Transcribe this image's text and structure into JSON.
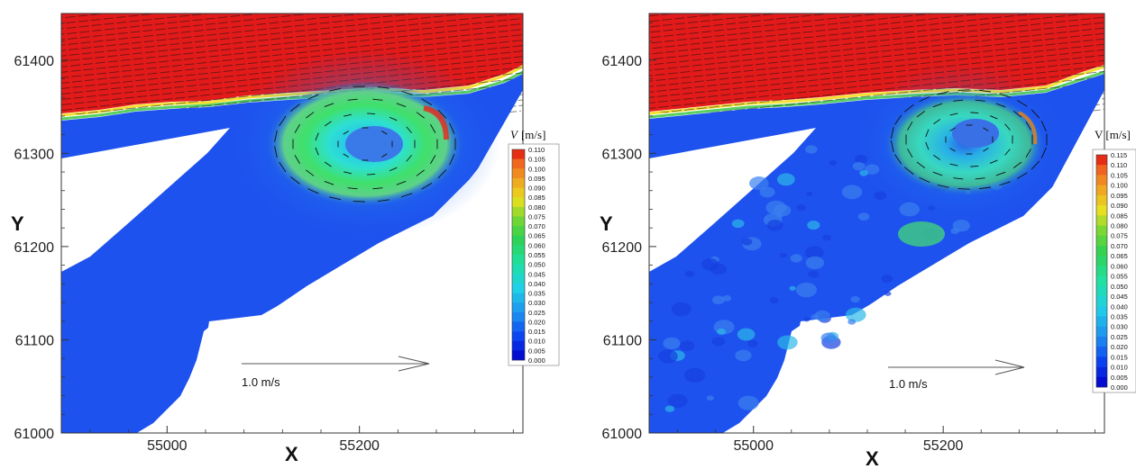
{
  "chart_data": [
    {
      "type": "contour-vector",
      "xlabel": "X",
      "ylabel": "Y",
      "xlim": [
        54890,
        55370
      ],
      "ylim": [
        61000,
        61450
      ],
      "x_ticks": [
        "55000",
        "55200"
      ],
      "y_ticks": [
        "61000",
        "61100",
        "61200",
        "61300",
        "61400"
      ],
      "x_tick_values": [
        55000,
        55200
      ],
      "y_tick_values": [
        61000,
        61100,
        61200,
        61300,
        61400
      ],
      "colorbar_title": "V [m/s]",
      "colorbar_title_italic_var": "V",
      "colorbar_unit": "[m/s]",
      "colorbar_levels": [
        "0.110",
        "0.105",
        "0.100",
        "0.095",
        "0.090",
        "0.085",
        "0.080",
        "0.075",
        "0.070",
        "0.065",
        "0.060",
        "0.055",
        "0.050",
        "0.045",
        "0.040",
        "0.035",
        "0.030",
        "0.025",
        "0.020",
        "0.015",
        "0.010",
        "0.005",
        "0.000"
      ],
      "reference_vector_label": "1.0  m/s",
      "reference_vector_value": 1.0,
      "eddy_center": {
        "x": 55210,
        "y": 61310
      },
      "eddy_peak_speed": 0.11
    },
    {
      "type": "contour-vector",
      "xlabel": "X",
      "ylabel": "Y",
      "xlim": [
        54890,
        55370
      ],
      "ylim": [
        61000,
        61450
      ],
      "x_ticks": [
        "55000",
        "55200"
      ],
      "y_ticks": [
        "61000",
        "61100",
        "61200",
        "61300",
        "61400"
      ],
      "x_tick_values": [
        55000,
        55200
      ],
      "y_tick_values": [
        61000,
        61100,
        61200,
        61300,
        61400
      ],
      "colorbar_title": "V [m/s]",
      "colorbar_title_italic_var": "V",
      "colorbar_unit": "[m/s]",
      "colorbar_levels": [
        "0.115",
        "0.110",
        "0.105",
        "0.100",
        "0.095",
        "0.090",
        "0.085",
        "0.080",
        "0.075",
        "0.070",
        "0.065",
        "0.060",
        "0.055",
        "0.050",
        "0.045",
        "0.040",
        "0.035",
        "0.030",
        "0.025",
        "0.020",
        "0.015",
        "0.010",
        "0.005",
        "0.000"
      ],
      "reference_vector_label": "1.0 m/s",
      "reference_vector_value": 1.0,
      "eddy_center": {
        "x": 55210,
        "y": 61320
      },
      "eddy_peak_speed": 0.115
    }
  ],
  "colors": {
    "main_flow": "#e31a1a",
    "channel_low": "#1246ea",
    "vectors": "#111111"
  }
}
